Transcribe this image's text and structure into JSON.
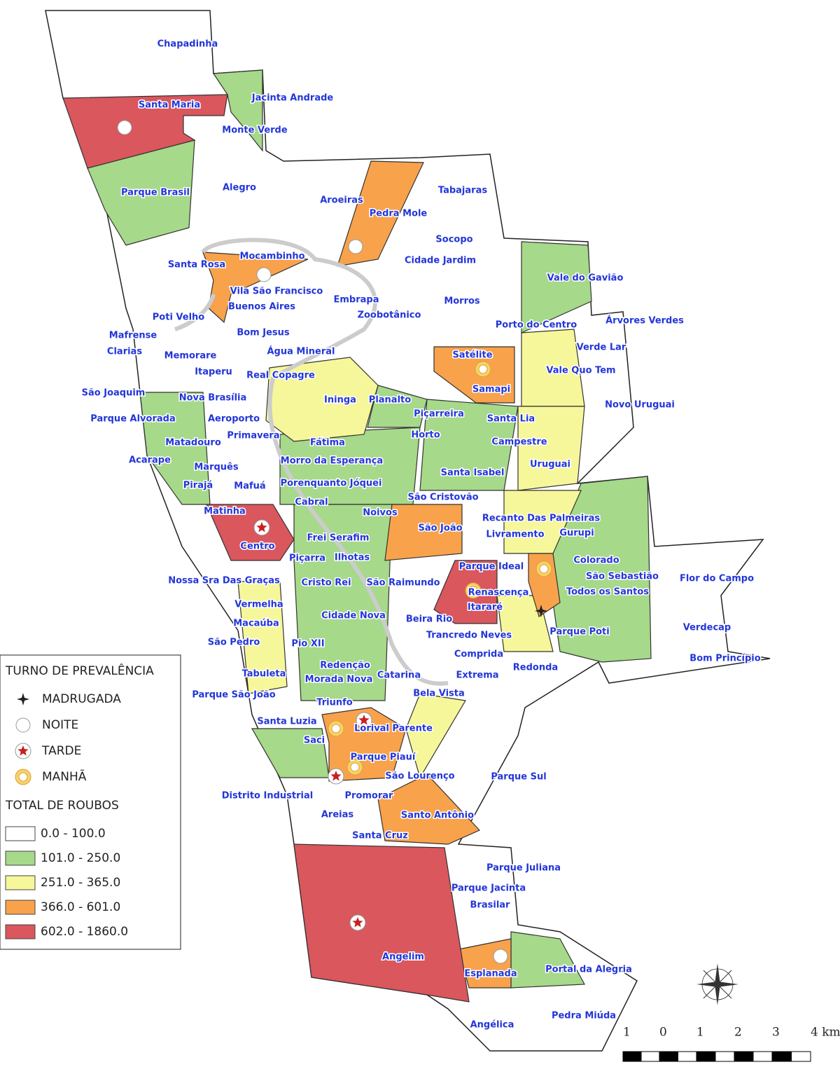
{
  "neighborhoods": [
    "Chapadinha",
    "Jacinta Andrade",
    "Santa Maria",
    "Monte Verde",
    "Parque Brasil",
    "Alegro",
    "Aroeiras",
    "Tabajaras",
    "Pedra Mole",
    "Socopo",
    "Mocambinho",
    "Santa Rosa",
    "Cidade Jardim",
    "Vale do Gavião",
    "Vila São Francisco",
    "Buenos Aires",
    "Embrapa",
    "Morros",
    "Zoobotânico",
    "Poti Velho",
    "Porto do Centro",
    "Árvores Verdes",
    "Bom Jesus",
    "Mafrense",
    "Verde Lar",
    "Clarias",
    "Água Mineral",
    "Memorare",
    "Satélite",
    "Vale Quo Tem",
    "Itaperu",
    "Real Copagre",
    "Samapi",
    "São Joaquim",
    "Nova Brasília",
    "Ininga",
    "Planalto",
    "Novo Uruguai",
    "Piçarreira",
    "Aeroporto",
    "Parque Alvorada",
    "Santa Lia",
    "Primavera",
    "Horto",
    "Matadouro",
    "Fátima",
    "Campestre",
    "Morro da Esperança",
    "Acarape",
    "Uruguai",
    "Marquês",
    "Santa Isabel",
    "Pirajá",
    "Mafuá",
    "Porenquanto Jóquei",
    "São Cristovão",
    "Cabral",
    "Matinha",
    "Noivos",
    "Recanto Das Palmeiras",
    "São João",
    "Livramento",
    "Gurupi",
    "Centro",
    "Frei Serafim",
    "Colorado",
    "Piçarra",
    "Ilhotas",
    "Parque Ideal",
    "São Raimundo",
    "Nossa Sra Das Graças",
    "São Sebastião",
    "Flor do Campo",
    "Cristo Rei",
    "Renascença",
    "Todos os Santos",
    "Vermelha",
    "Itararé",
    "Cidade Nova",
    "Beira Rio",
    "Macaúba",
    "Verdecap",
    "Parque Poti",
    "Trancredo Neves",
    "São Pedro",
    "Pio XII",
    "Comprida",
    "Bom Princípio",
    "Redenção",
    "Redonda",
    "Tabuleta",
    "Morada Nova",
    "Catarina",
    "Extrema",
    "Parque São João",
    "Bela Vista",
    "Triunfo",
    "Santa Luzia",
    "Lorival Parente",
    "Saci",
    "Parque Piauí",
    "São Lourenço",
    "Parque Sul",
    "Distrito Industrial",
    "Promorar",
    "Areias",
    "Santo Antônio",
    "Santa Cruz",
    "Parque Juliana",
    "Parque Jacinta",
    "Brasilar",
    "Angelim",
    "Esplanada",
    "Portal da Alegria",
    "Pedra Miúda",
    "Angélica"
  ],
  "legend": {
    "shift_title": "TURNO DE PREVALÊNCIA",
    "shifts": [
      "MADRUGADA",
      "NOITE",
      "TARDE",
      "MANHÃ"
    ],
    "total_title": "TOTAL DE ROUBOS",
    "classes": [
      {
        "label": "0.0 - 100.0",
        "color": "#ffffff"
      },
      {
        "label": "101.0 - 250.0",
        "color": "#a6d98a"
      },
      {
        "label": "251.0 - 365.0",
        "color": "#f6f79a"
      },
      {
        "label": "366.0 - 601.0",
        "color": "#f8a24c"
      },
      {
        "label": "602.0 - 1860.0",
        "color": "#d9575d"
      }
    ]
  },
  "scale": {
    "labels": [
      "1",
      "0",
      "1",
      "2",
      "3",
      "4 km"
    ]
  }
}
